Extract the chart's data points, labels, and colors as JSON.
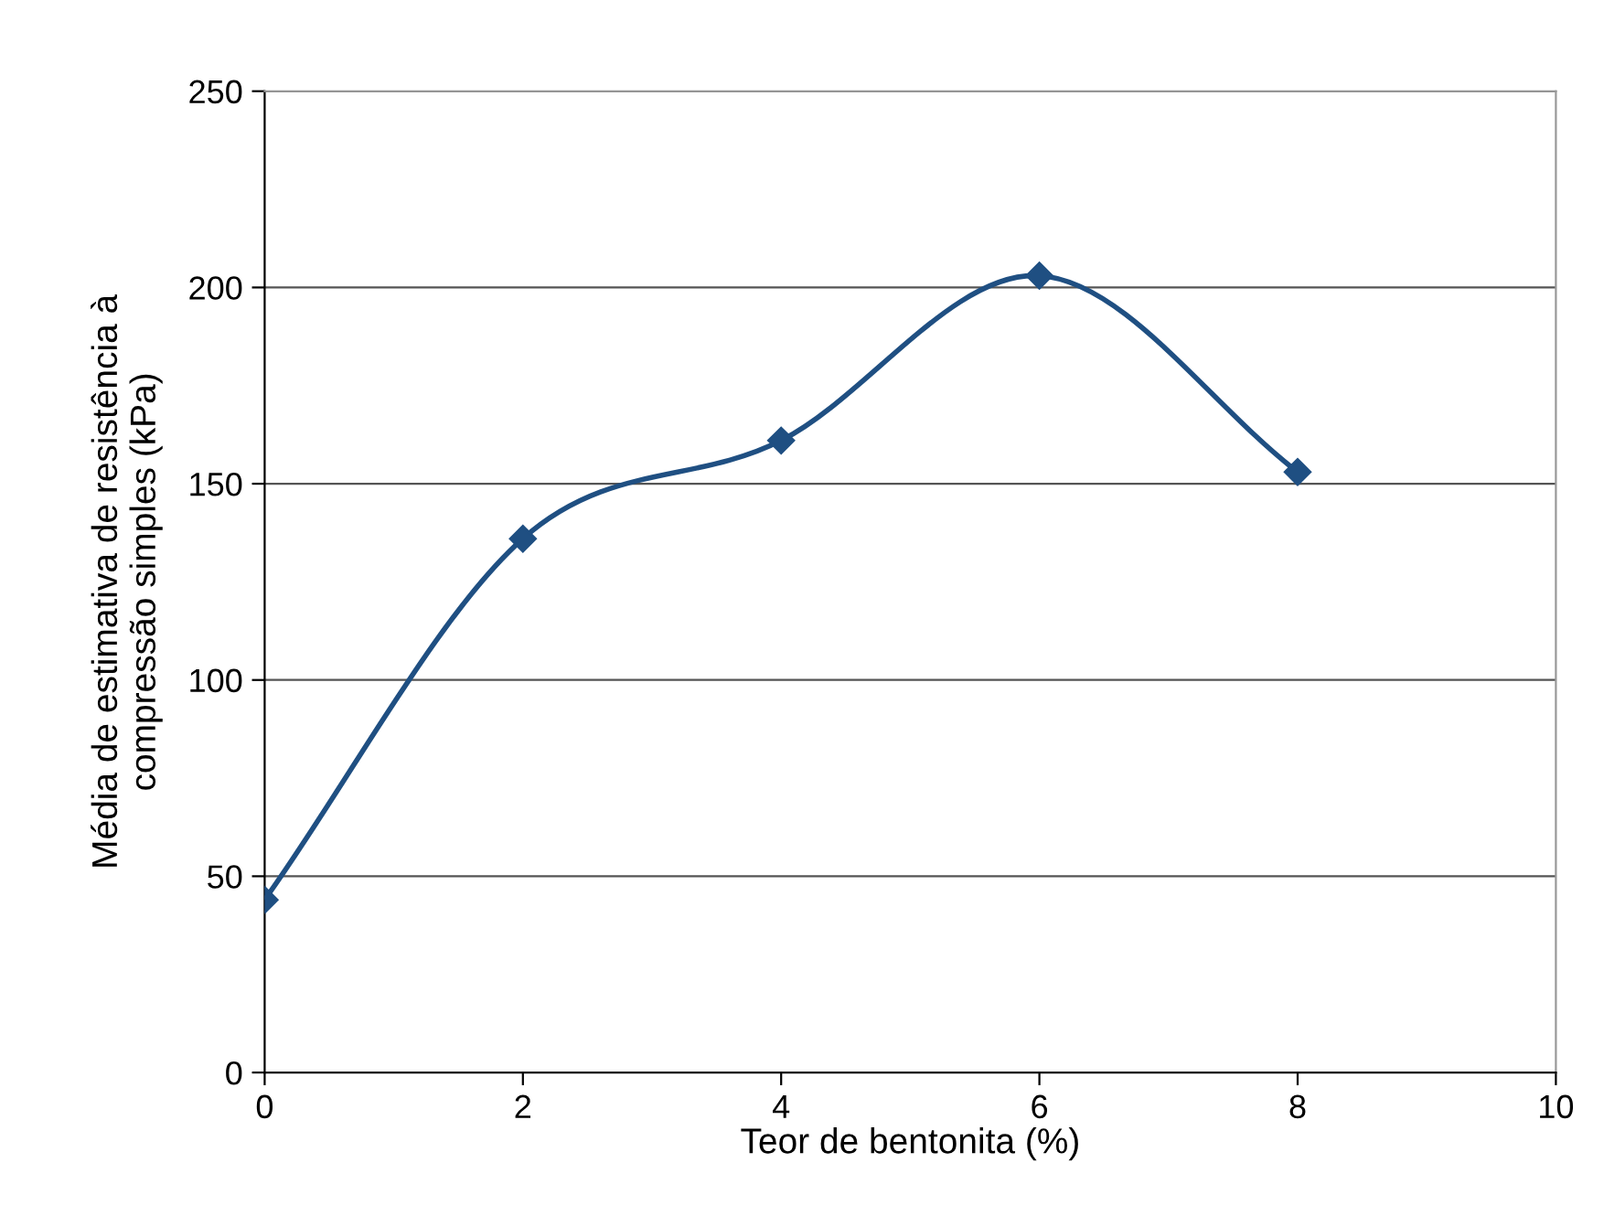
{
  "chart_data": {
    "type": "line",
    "xlabel": "Teor de bentonita (%)",
    "ylabel": "Média de estimativa de resistência à\ncompressão simples (kPa)",
    "x": [
      0,
      2,
      4,
      6,
      8
    ],
    "series": [
      {
        "color": "#1f4f82",
        "values": [
          44,
          136,
          161,
          203,
          153
        ]
      }
    ],
    "xlim": [
      0,
      10
    ],
    "xticks": [
      0,
      2,
      4,
      6,
      8,
      10
    ],
    "ylim": [
      0,
      250
    ],
    "yticks": [
      0,
      50,
      100,
      150,
      200,
      250
    ],
    "grid": "y",
    "marker": "diamond",
    "line_style": "solid",
    "legend": false
  }
}
